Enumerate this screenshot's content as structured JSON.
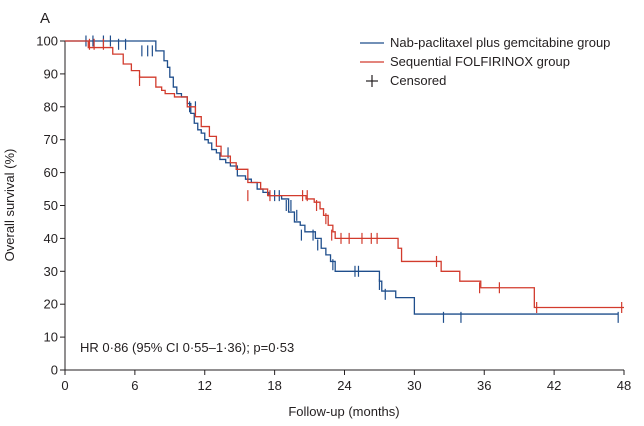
{
  "chart_data": {
    "type": "line",
    "panel_label": "A",
    "xlabel": "Follow-up (months)",
    "ylabel": "Overall survival (%)",
    "xlim": [
      0,
      48
    ],
    "ylim": [
      0,
      100
    ],
    "x_ticks": [
      0,
      6,
      12,
      18,
      24,
      30,
      36,
      42,
      48
    ],
    "y_ticks": [
      0,
      10,
      20,
      30,
      40,
      50,
      60,
      70,
      80,
      90,
      100
    ],
    "grid": false,
    "legend_position": "top-right",
    "annotation": "HR 0·86 (95% CI 0·55–1·36); p=0·53",
    "censored_label": "Censored",
    "series": [
      {
        "name": "Nab-paclitaxel plus gemcitabine group",
        "color": "#1f4e8c",
        "steps": [
          [
            0,
            100
          ],
          [
            7.8,
            97
          ],
          [
            8.5,
            94
          ],
          [
            8.8,
            92
          ],
          [
            9.0,
            89
          ],
          [
            9.3,
            86
          ],
          [
            9.6,
            84
          ],
          [
            10.0,
            83
          ],
          [
            10.5,
            81
          ],
          [
            10.8,
            78
          ],
          [
            11.1,
            75
          ],
          [
            11.4,
            73
          ],
          [
            11.7,
            72
          ],
          [
            12.0,
            70
          ],
          [
            12.3,
            69
          ],
          [
            12.6,
            67
          ],
          [
            13.0,
            66
          ],
          [
            13.3,
            64
          ],
          [
            13.8,
            63
          ],
          [
            14.2,
            62
          ],
          [
            14.8,
            59
          ],
          [
            15.5,
            58
          ],
          [
            16.0,
            57
          ],
          [
            16.5,
            55
          ],
          [
            17.0,
            54
          ],
          [
            17.5,
            53
          ],
          [
            18.6,
            52
          ],
          [
            19.2,
            48
          ],
          [
            19.7,
            45
          ],
          [
            20.2,
            44
          ],
          [
            20.6,
            42
          ],
          [
            21.5,
            40
          ],
          [
            22.0,
            37
          ],
          [
            22.4,
            35
          ],
          [
            22.8,
            33
          ],
          [
            23.2,
            30
          ],
          [
            27.0,
            27
          ],
          [
            27.2,
            24
          ],
          [
            28.4,
            22
          ],
          [
            30.0,
            17
          ]
        ],
        "end_x": 47.5,
        "censored": [
          [
            1.8,
            100
          ],
          [
            2.4,
            100
          ],
          [
            3.3,
            100
          ],
          [
            3.9,
            100
          ],
          [
            4.6,
            99
          ],
          [
            5.2,
            99
          ],
          [
            6.6,
            97
          ],
          [
            7.1,
            97
          ],
          [
            7.5,
            97
          ],
          [
            10.7,
            80
          ],
          [
            11.2,
            80
          ],
          [
            14.0,
            66
          ],
          [
            18.0,
            53
          ],
          [
            18.4,
            53
          ],
          [
            19.0,
            50
          ],
          [
            19.4,
            50
          ],
          [
            19.9,
            47
          ],
          [
            20.3,
            41
          ],
          [
            21.3,
            41
          ],
          [
            21.7,
            38
          ],
          [
            23.0,
            32
          ],
          [
            24.9,
            30
          ],
          [
            25.2,
            30
          ],
          [
            27.0,
            26
          ],
          [
            27.5,
            23
          ],
          [
            32.5,
            16
          ],
          [
            34.0,
            16
          ],
          [
            47.5,
            16
          ]
        ]
      },
      {
        "name": "Sequential FOLFIRINOX group",
        "color": "#d23b2d",
        "steps": [
          [
            0,
            100
          ],
          [
            2.0,
            98
          ],
          [
            4.1,
            96
          ],
          [
            5.0,
            93
          ],
          [
            5.7,
            91
          ],
          [
            6.4,
            89
          ],
          [
            7.8,
            86
          ],
          [
            8.3,
            85
          ],
          [
            8.6,
            84
          ],
          [
            9.4,
            83
          ],
          [
            10.5,
            80
          ],
          [
            11.2,
            77
          ],
          [
            11.7,
            74
          ],
          [
            12.4,
            71
          ],
          [
            13.0,
            68
          ],
          [
            13.4,
            65
          ],
          [
            14.2,
            63
          ],
          [
            14.7,
            61
          ],
          [
            15.7,
            57
          ],
          [
            16.8,
            55
          ],
          [
            17.4,
            53
          ],
          [
            20.7,
            52
          ],
          [
            21.4,
            51
          ],
          [
            21.9,
            49
          ],
          [
            22.2,
            47
          ],
          [
            22.6,
            44
          ],
          [
            23.0,
            42
          ],
          [
            23.2,
            40
          ],
          [
            28.6,
            37
          ],
          [
            28.9,
            33
          ],
          [
            32.3,
            30
          ],
          [
            33.9,
            27
          ],
          [
            35.7,
            25
          ],
          [
            40.3,
            19
          ]
        ],
        "end_x": 48,
        "censored": [
          [
            2.1,
            99
          ],
          [
            2.5,
            99
          ],
          [
            3.3,
            99
          ],
          [
            6.4,
            88
          ],
          [
            15.7,
            53
          ],
          [
            17.6,
            53
          ],
          [
            20.4,
            53
          ],
          [
            20.8,
            53
          ],
          [
            21.6,
            50
          ],
          [
            22.4,
            46
          ],
          [
            22.9,
            41
          ],
          [
            23.7,
            40
          ],
          [
            24.4,
            40
          ],
          [
            25.5,
            40
          ],
          [
            26.3,
            40
          ],
          [
            26.8,
            40
          ],
          [
            31.9,
            33
          ],
          [
            35.6,
            25
          ],
          [
            37.3,
            25
          ],
          [
            40.5,
            19
          ],
          [
            47.8,
            19
          ]
        ]
      }
    ]
  }
}
